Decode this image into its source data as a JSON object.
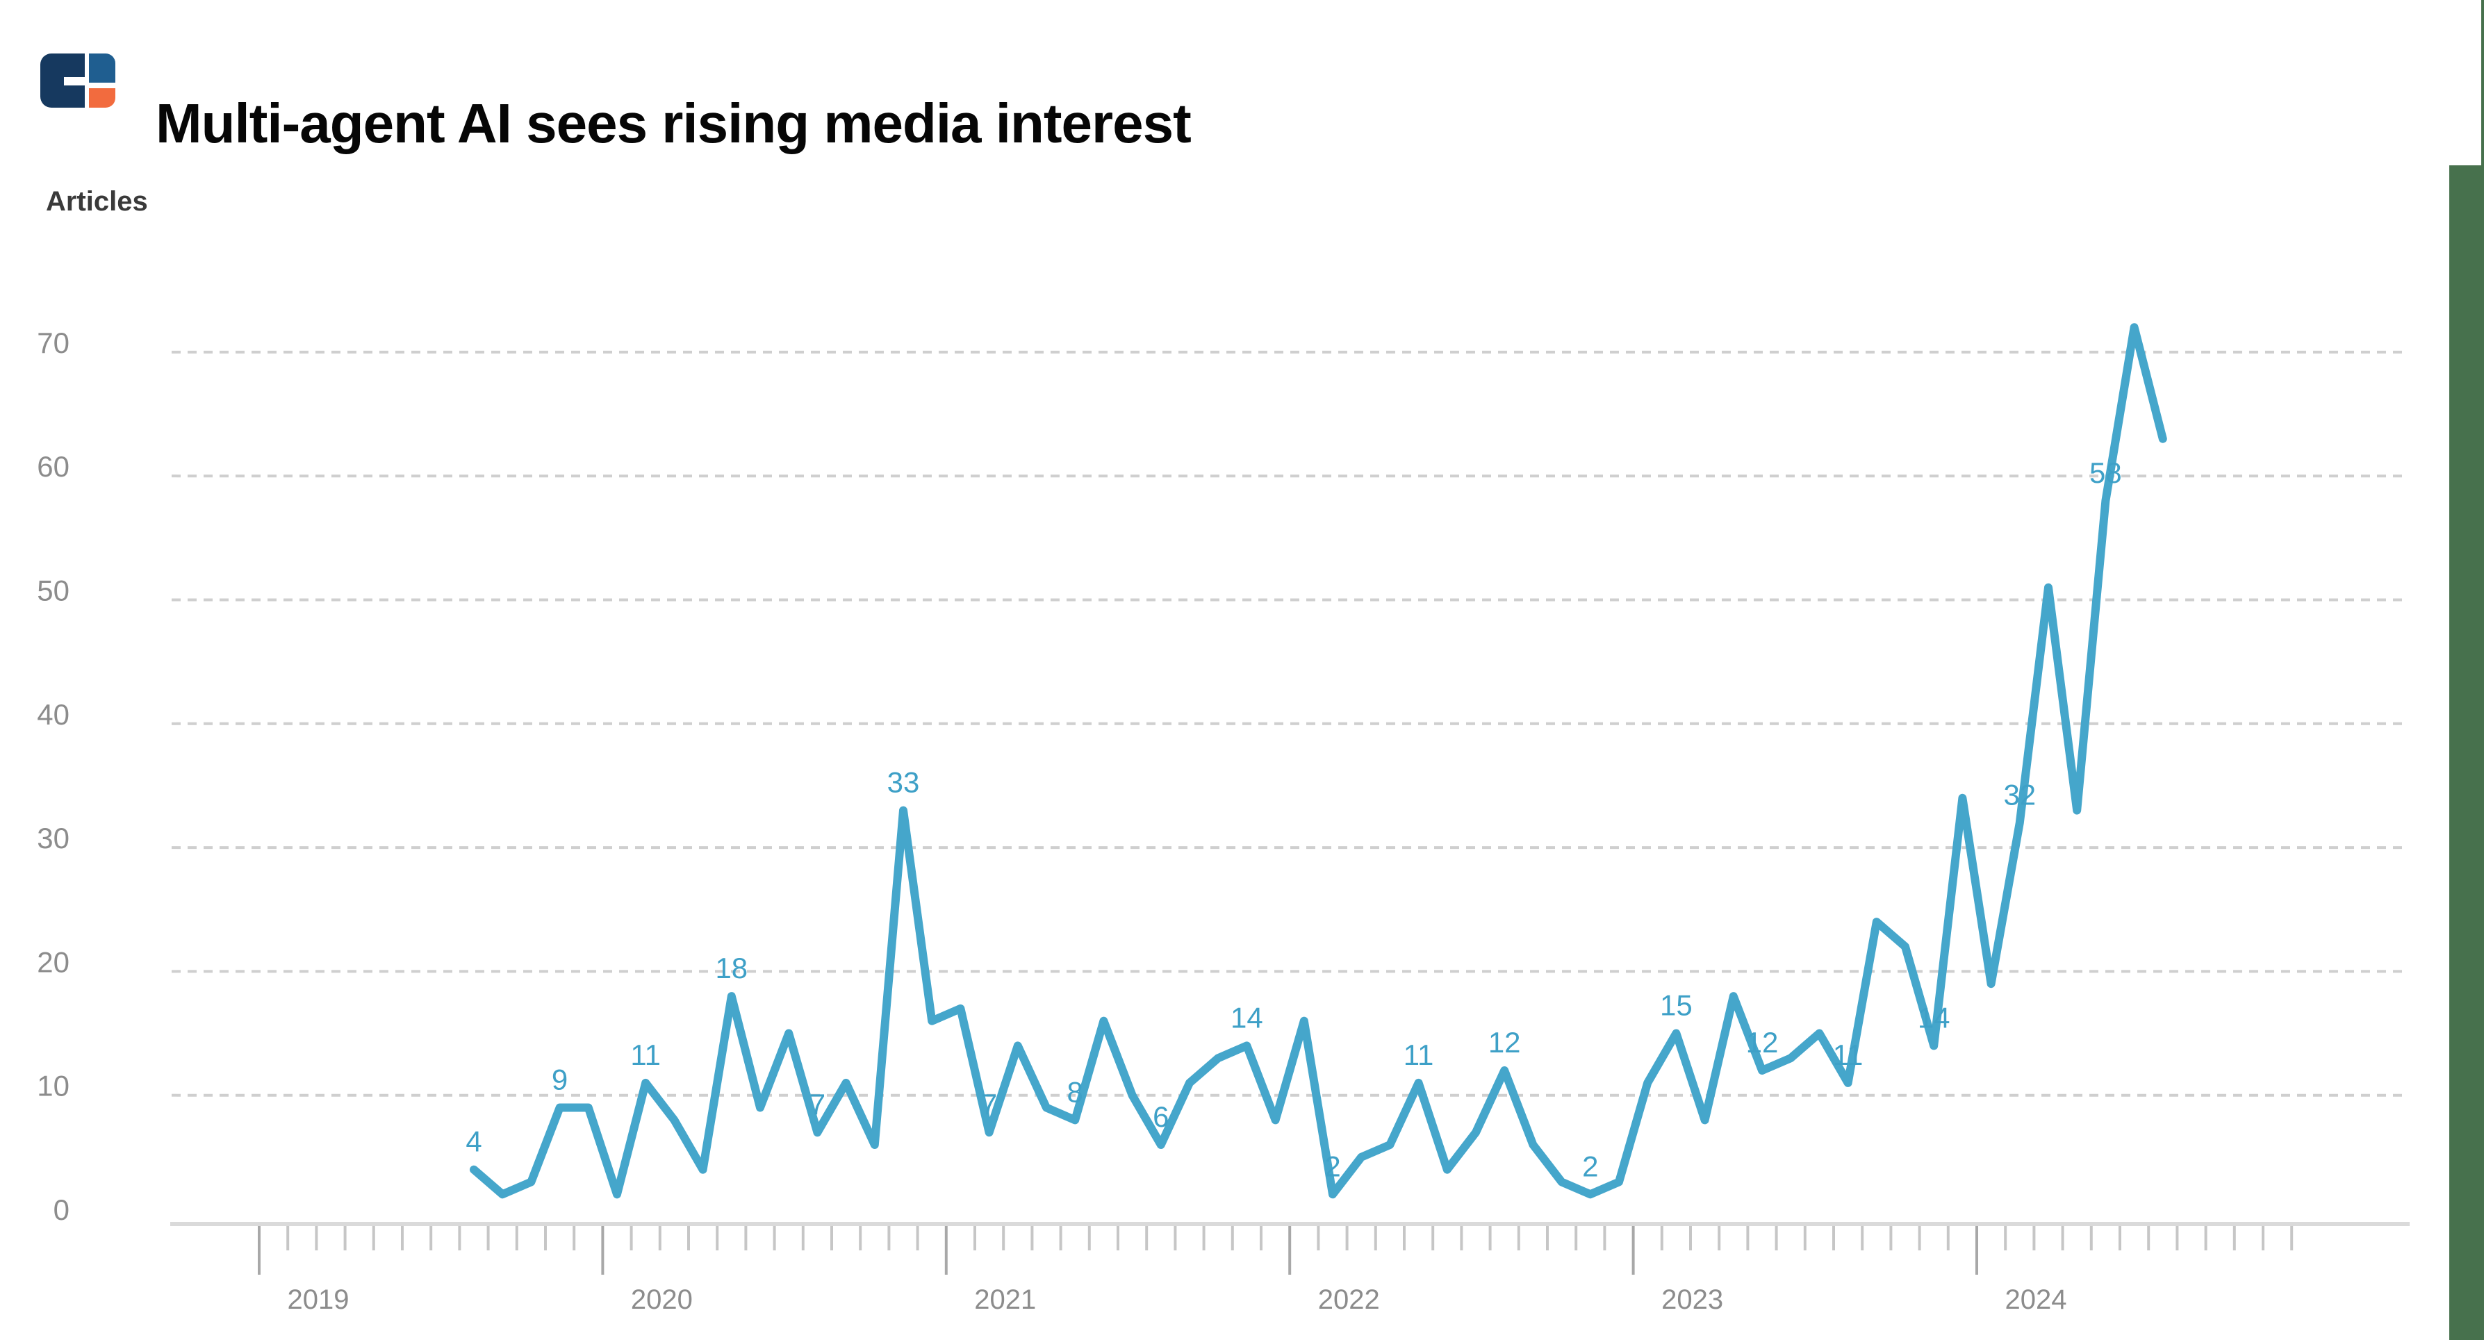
{
  "header": {
    "title": "Multi-agent AI sees rising media interest"
  },
  "y_axis": {
    "label": "Articles",
    "tick_values": [
      0,
      10,
      20,
      30,
      40,
      50,
      60,
      70
    ]
  },
  "x_axis": {
    "year_labels": [
      "2019",
      "2020",
      "2021",
      "2022",
      "2023",
      "2024"
    ]
  },
  "colors": {
    "line": "#45A6CB",
    "data_label": "#3EA0C7",
    "gridline": "#CFCFCF",
    "axis_line": "#DADADA",
    "minor_tick": "#C6C6C6",
    "year_tick": "#A8A8A8",
    "axis_text": "#8C8C8C",
    "title_text": "#060606",
    "articles_text": "#3A3A3A",
    "green_bar": "#47714D",
    "logo_navy": "#16395F",
    "logo_blue": "#1F5E90",
    "logo_orange": "#F26B3E"
  },
  "chart_data": {
    "type": "line",
    "title": "Multi-agent AI sees rising media interest",
    "ylabel": "Articles",
    "ylim": [
      0,
      75
    ],
    "grid": "horizontal-dashed",
    "legend": "none",
    "x_start_month": "2019-08",
    "x": [
      "2019-08",
      "2019-09",
      "2019-10",
      "2019-11",
      "2019-12",
      "2020-01",
      "2020-02",
      "2020-03",
      "2020-04",
      "2020-05",
      "2020-06",
      "2020-07",
      "2020-08",
      "2020-09",
      "2020-10",
      "2020-11",
      "2020-12",
      "2021-01",
      "2021-02",
      "2021-03",
      "2021-04",
      "2021-05",
      "2021-06",
      "2021-07",
      "2021-08",
      "2021-09",
      "2021-10",
      "2021-11",
      "2021-12",
      "2022-01",
      "2022-02",
      "2022-03",
      "2022-04",
      "2022-05",
      "2022-06",
      "2022-07",
      "2022-08",
      "2022-09",
      "2022-10",
      "2022-11",
      "2022-12",
      "2023-01",
      "2023-02",
      "2023-03",
      "2023-04",
      "2023-05",
      "2023-06",
      "2023-07",
      "2023-08",
      "2023-09",
      "2023-10",
      "2023-11",
      "2023-12",
      "2024-01",
      "2024-02",
      "2024-03",
      "2024-04",
      "2024-05",
      "2024-06",
      "2024-07"
    ],
    "values": [
      4,
      2,
      3,
      9,
      9,
      2,
      11,
      8,
      4,
      18,
      9,
      15,
      7,
      11,
      6,
      33,
      16,
      17,
      7,
      14,
      9,
      8,
      16,
      10,
      6,
      11,
      13,
      14,
      8,
      16,
      2,
      5,
      6,
      11,
      4,
      7,
      12,
      6,
      3,
      2,
      3,
      11,
      15,
      8,
      18,
      12,
      13,
      15,
      11,
      24,
      22,
      14,
      34,
      19,
      32,
      51,
      33,
      58,
      72,
      63
    ],
    "labeled_points": [
      {
        "month": "2019-08",
        "value": 4
      },
      {
        "month": "2019-11",
        "value": 9
      },
      {
        "month": "2020-02",
        "value": 11
      },
      {
        "month": "2020-05",
        "value": 18
      },
      {
        "month": "2020-08",
        "value": 7
      },
      {
        "month": "2020-11",
        "value": 33
      },
      {
        "month": "2021-02",
        "value": 7
      },
      {
        "month": "2021-05",
        "value": 8
      },
      {
        "month": "2021-08",
        "value": 6
      },
      {
        "month": "2021-11",
        "value": 14
      },
      {
        "month": "2022-02",
        "value": 2
      },
      {
        "month": "2022-05",
        "value": 11
      },
      {
        "month": "2022-08",
        "value": 12
      },
      {
        "month": "2022-11",
        "value": 2
      },
      {
        "month": "2023-02",
        "value": 15
      },
      {
        "month": "2023-05",
        "value": 12
      },
      {
        "month": "2023-08",
        "value": 11
      },
      {
        "month": "2023-11",
        "value": 14
      },
      {
        "month": "2024-02",
        "value": 32
      },
      {
        "month": "2024-05",
        "value": 58
      }
    ]
  }
}
